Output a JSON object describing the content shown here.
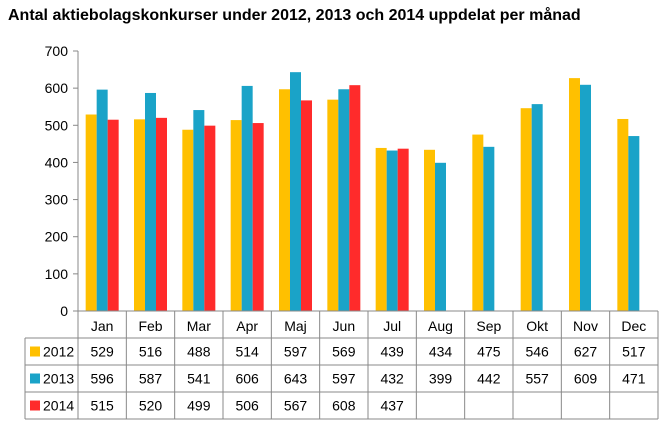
{
  "chart_data": {
    "type": "bar",
    "title": "Antal aktiebolagskonkurser under 2012, 2013 och 2014 uppdelat per månad",
    "categories": [
      "Jan",
      "Feb",
      "Mar",
      "Apr",
      "Maj",
      "Jun",
      "Jul",
      "Aug",
      "Sep",
      "Okt",
      "Nov",
      "Dec"
    ],
    "series": [
      {
        "name": "2012",
        "color": "#ffc000",
        "values": [
          529,
          516,
          488,
          514,
          597,
          569,
          439,
          434,
          475,
          546,
          627,
          517
        ]
      },
      {
        "name": "2013",
        "color": "#1aa3c8",
        "values": [
          596,
          587,
          541,
          606,
          643,
          597,
          432,
          399,
          442,
          557,
          609,
          471
        ]
      },
      {
        "name": "2014",
        "color": "#ff2b2b",
        "values": [
          515,
          520,
          499,
          506,
          567,
          608,
          437,
          null,
          null,
          null,
          null,
          null
        ]
      }
    ],
    "ylim": [
      0,
      700
    ],
    "yticks": [
      0,
      100,
      200,
      300,
      400,
      500,
      600,
      700
    ],
    "xlabel": "",
    "ylabel": "",
    "legend": "data-table",
    "grid": false
  }
}
